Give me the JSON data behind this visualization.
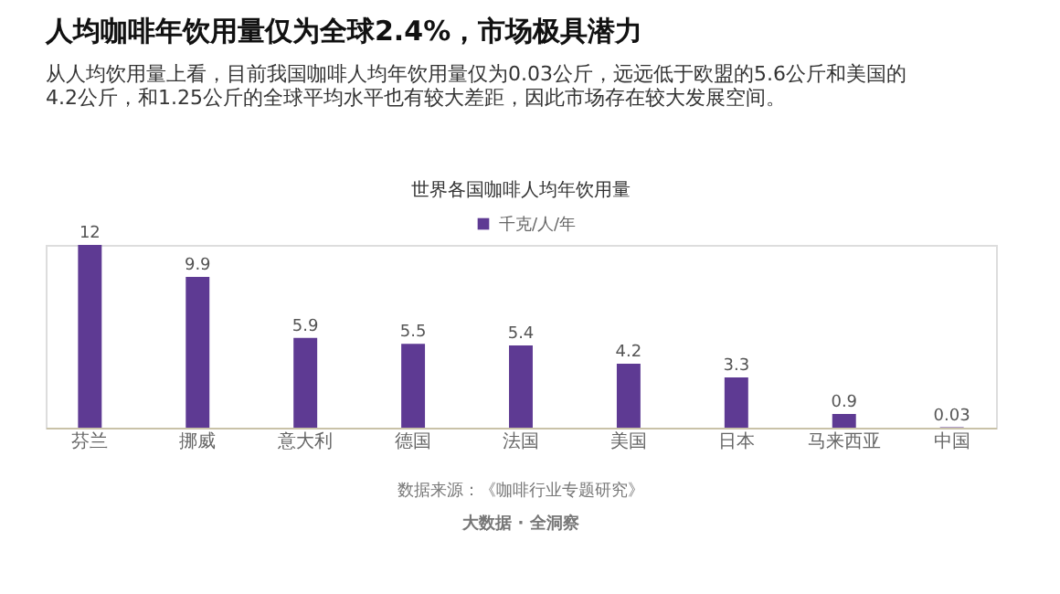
{
  "chart_data": {
    "type": "bar",
    "title": "人均咖啡年饮用量仅为全球2.4%，市场极具潜力",
    "subtitle": "从人均饮用量上看，目前我国咖啡人均年饮用量仅为0.03公斤，远远低于欧盟的5.6公斤和美国的4.2公斤，和1.25公斤的全球平均水平也有较大差距，因此市场存在较大发展空间。",
    "annotations": [
      "世界各国咖啡人均年饮用量",
      "数据来源：《咖啡行业专题研究》",
      "大数据 · 全洞察"
    ],
    "categories": [
      "芬兰",
      "挪威",
      "意大利",
      "德国",
      "法国",
      "美国",
      "日本",
      "马来西亚",
      "中国"
    ],
    "series": [
      {
        "name": "千克/人/年",
        "color": "#5e3a93",
        "values": [
          12,
          9.9,
          5.9,
          5.5,
          5.4,
          4.2,
          3.3,
          0.9,
          0.03
        ]
      }
    ],
    "data_labels": true,
    "legend": "top",
    "grid": false
  }
}
